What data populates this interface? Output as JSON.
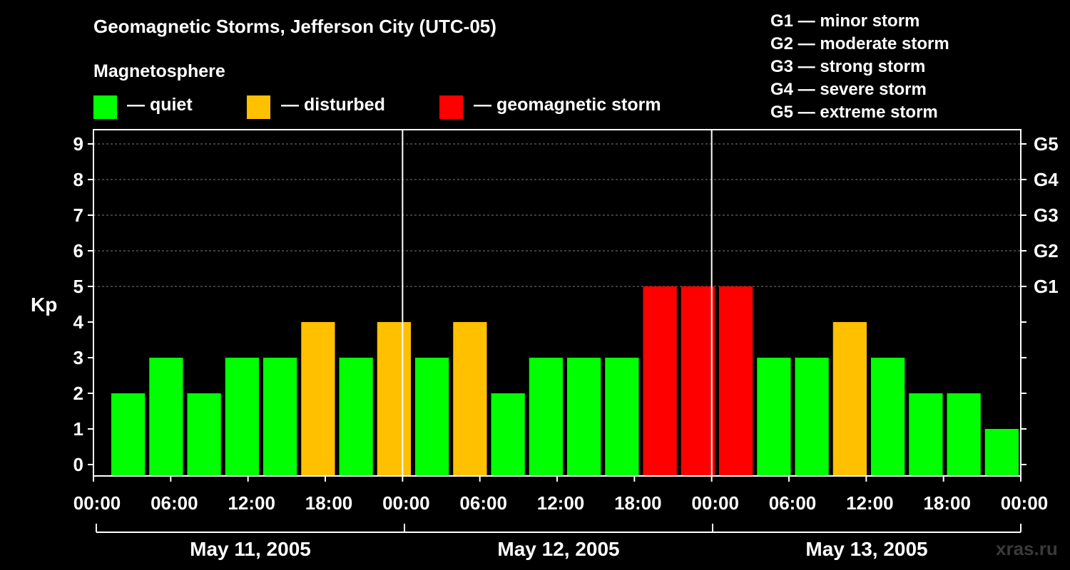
{
  "title": "Geomagnetic Storms, Jefferson City (UTC-05)",
  "legend": {
    "heading": "Magnetosphere",
    "items": [
      {
        "label": "— quiet",
        "color": "#00ff00"
      },
      {
        "label": "— disturbed",
        "color": "#ffc000"
      },
      {
        "label": "— geomagnetic storm",
        "color": "#ff0000"
      }
    ]
  },
  "storm_scale": [
    "G1 — minor storm",
    "G2 — moderate storm",
    "G3 — strong storm",
    "G4 — severe storm",
    "G5 — extreme storm"
  ],
  "watermark": "xras.ru",
  "chart_data": {
    "type": "bar",
    "ylabel": "Kp",
    "ylim": [
      0,
      9
    ],
    "yticks": [
      0,
      1,
      2,
      3,
      4,
      5,
      6,
      7,
      8,
      9
    ],
    "right_ticks": [
      {
        "kp": 5,
        "label": "G1"
      },
      {
        "kp": 6,
        "label": "G2"
      },
      {
        "kp": 7,
        "label": "G3"
      },
      {
        "kp": 8,
        "label": "G4"
      },
      {
        "kp": 9,
        "label": "G5"
      }
    ],
    "grid": "horizontal dashed at Kp 5–9",
    "xtick_labels": [
      "00:00",
      "06:00",
      "12:00",
      "18:00",
      "00:00",
      "06:00",
      "12:00",
      "18:00",
      "00:00",
      "06:00",
      "12:00",
      "18:00",
      "00:00"
    ],
    "days": [
      "May 11, 2005",
      "May 12, 2005",
      "May 13, 2005"
    ],
    "values": [
      2,
      3,
      2,
      3,
      3,
      4,
      3,
      4,
      3,
      4,
      2,
      3,
      3,
      3,
      5,
      5,
      5,
      3,
      3,
      4,
      3,
      2,
      2,
      1
    ],
    "colors": {
      "quiet": "#00ff00",
      "disturbed": "#ffc000",
      "storm": "#ff0000"
    }
  }
}
